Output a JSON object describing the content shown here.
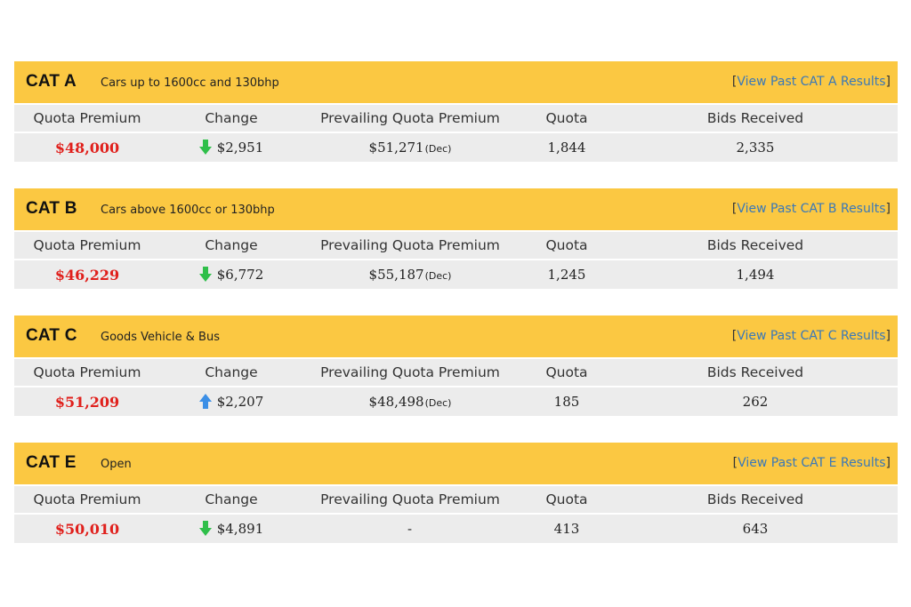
{
  "columns": {
    "quota_premium": "Quota Premium",
    "change": "Change",
    "prevailing": "Prevailing Quota Premium",
    "quota": "Quota",
    "bids": "Bids Received"
  },
  "colors": {
    "header_bg": "#fbc842",
    "row_bg": "#ececec",
    "premium_red": "#e0201c",
    "link_blue": "#3a78b8",
    "arrow_down_green": "#2fbf4a",
    "arrow_up_blue": "#3c8fe6"
  },
  "categories": [
    {
      "name": "CAT A",
      "description": "Cars up to 1600cc and 130bhp",
      "link_open": "[",
      "link_text": "View Past CAT A Results",
      "link_close": "]",
      "quota_premium": "$48,000",
      "change_direction": "down",
      "change_icon": "arrow-down-icon",
      "change": "$2,951",
      "prevailing": "$51,271",
      "prevailing_suffix": "(Dec)",
      "quota": "1,844",
      "bids": "2,335"
    },
    {
      "name": "CAT B",
      "description": "Cars above 1600cc or 130bhp",
      "link_open": "[",
      "link_text": "View Past CAT B Results",
      "link_close": "]",
      "quota_premium": "$46,229",
      "change_direction": "down",
      "change_icon": "arrow-down-icon",
      "change": "$6,772",
      "prevailing": "$55,187",
      "prevailing_suffix": "(Dec)",
      "quota": "1,245",
      "bids": "1,494"
    },
    {
      "name": "CAT C",
      "description": "Goods Vehicle & Bus",
      "link_open": "[",
      "link_text": "View Past CAT C Results",
      "link_close": "]",
      "quota_premium": "$51,209",
      "change_direction": "up",
      "change_icon": "arrow-up-icon",
      "change": "$2,207",
      "prevailing": "$48,498",
      "prevailing_suffix": "(Dec)",
      "quota": "185",
      "bids": "262"
    },
    {
      "name": "CAT E",
      "description": "Open",
      "link_open": "[",
      "link_text": "View Past CAT E Results",
      "link_close": "]",
      "quota_premium": "$50,010",
      "change_direction": "down",
      "change_icon": "arrow-down-icon",
      "change": "$4,891",
      "prevailing": "-",
      "prevailing_suffix": "",
      "quota": "413",
      "bids": "643"
    }
  ]
}
